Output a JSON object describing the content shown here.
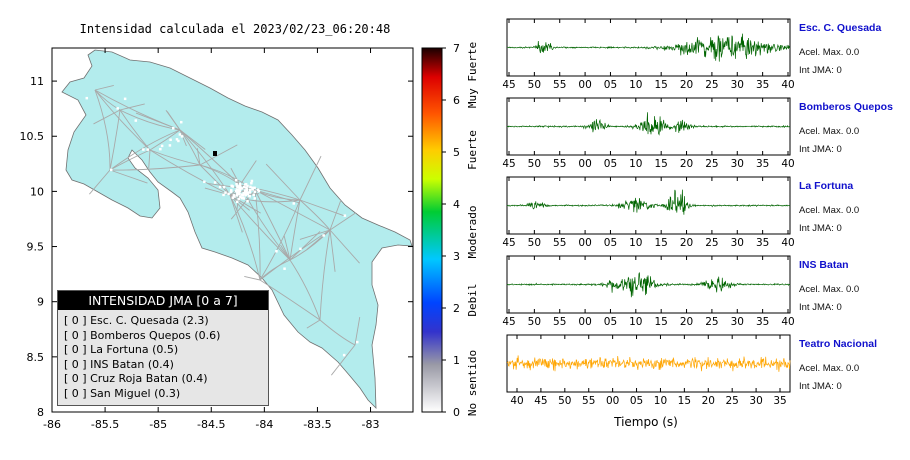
{
  "map": {
    "title": "Intensidad calculada el 2023/02/23_06:20:48",
    "x_ticks": [
      "-86",
      "-85.5",
      "-85",
      "-84.5",
      "-84",
      "-83.5",
      "-83"
    ],
    "y_ticks": [
      "11",
      "10.5",
      "10",
      "9.5",
      "9",
      "8.5",
      "8"
    ],
    "xlim": [
      -86,
      -82.6
    ],
    "ylim": [
      8,
      11.3
    ],
    "land_color": "#b3eced",
    "road_color": "#a9a9a9"
  },
  "colorbar": {
    "ticks": [
      "0",
      "1",
      "2",
      "3",
      "4",
      "5",
      "6",
      "7"
    ],
    "labels": [
      "No sentido",
      "Debil",
      "Moderado",
      "Fuerte",
      "Muy Fuerte"
    ]
  },
  "legend": {
    "title": "INTENSIDAD JMA [0 a 7]",
    "items": [
      "[ 0 ]  Esc. C. Quesada (2.3)",
      "[ 0 ]  Bomberos Quepos (0.6)",
      "[ 0 ]  La Fortuna (0.5)",
      "[ 0 ]  INS Batan (0.4)",
      "[ 0 ]  Cruz Roja Batan (0.4)",
      "[ 0 ]  San Miguel (0.3)"
    ]
  },
  "chart_data": {
    "type": "line",
    "xlabel": "Tiempo (s)",
    "traces": [
      {
        "name": "Esc. C. Quesada",
        "acel": "Acel. Max. 0.0",
        "jma": "Int JMA: 0",
        "color": "#006400",
        "x_ticks": [
          "45",
          "50",
          "55",
          "00",
          "05",
          "10",
          "15",
          "20",
          "25",
          "30",
          "35",
          "40"
        ],
        "first": 45.5,
        "bursts": [
          [
            37,
            5,
            0.6
          ],
          [
            218,
            30,
            1.0
          ]
        ]
      },
      {
        "name": "Bomberos Quepos",
        "acel": "Acel. Max. 0.0",
        "jma": "Int JMA: 0",
        "color": "#006400",
        "x_ticks": [
          "45",
          "50",
          "55",
          "00",
          "05",
          "10",
          "15",
          "20",
          "25",
          "30",
          "35",
          "40"
        ],
        "first": 45.5,
        "bursts": [
          [
            90,
            6,
            0.45
          ],
          [
            145,
            9,
            1.0
          ],
          [
            175,
            6,
            0.5
          ]
        ]
      },
      {
        "name": "La Fortuna",
        "acel": "Acel. Max. 0.0",
        "jma": "Int JMA: 0",
        "color": "#006400",
        "x_ticks": [
          "45",
          "50",
          "55",
          "00",
          "05",
          "10",
          "15",
          "20",
          "25",
          "30",
          "35",
          "40"
        ],
        "first": 45.5,
        "bursts": [
          [
            30,
            5,
            0.35
          ],
          [
            130,
            10,
            0.5
          ],
          [
            170,
            7,
            1.0
          ]
        ]
      },
      {
        "name": "INS Batan",
        "acel": "Acel. Max. 0.0",
        "jma": "Int JMA: 0",
        "color": "#006400",
        "x_ticks": [
          "45",
          "50",
          "55",
          "00",
          "05",
          "10",
          "15",
          "20",
          "25",
          "30",
          "35",
          "40"
        ],
        "first": 45.5,
        "bursts": [
          [
            125,
            14,
            1.0
          ],
          [
            210,
            10,
            0.55
          ]
        ]
      },
      {
        "name": "Teatro Nacional",
        "acel": "Acel. Max. 0.0",
        "jma": "Int JMA: 0",
        "color": "#ffa500",
        "x_ticks": [
          "40",
          "45",
          "50",
          "55",
          "00",
          "05",
          "10",
          "15",
          "20",
          "25",
          "30",
          "35"
        ],
        "first": 39.0,
        "bursts": []
      }
    ]
  }
}
